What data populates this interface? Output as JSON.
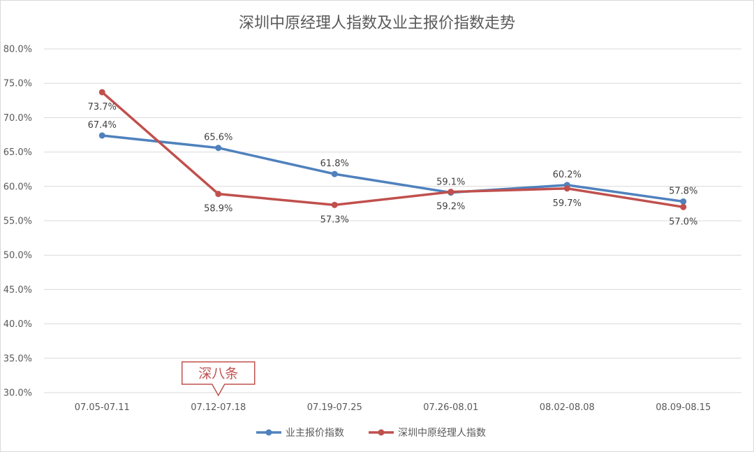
{
  "chart_data": {
    "type": "line",
    "title": "深圳中原经理人指数及业主报价指数走势",
    "categories": [
      "07.05-07.11",
      "07.12-07.18",
      "07.19-07.25",
      "07.26-08.01",
      "08.02-08.08",
      "08.09-08.15"
    ],
    "yticks": [
      "30.0%",
      "35.0%",
      "40.0%",
      "45.0%",
      "50.0%",
      "55.0%",
      "60.0%",
      "65.0%",
      "70.0%",
      "75.0%",
      "80.0%"
    ],
    "ylim": [
      30,
      80
    ],
    "grid": true,
    "legend_position": "bottom",
    "series": [
      {
        "name": "业主报价指数",
        "color": "#4f81bd",
        "values": [
          67.4,
          65.6,
          61.8,
          59.1,
          60.2,
          57.8
        ],
        "labels": [
          "67.4%",
          "65.6%",
          "61.8%",
          "59.1%",
          "60.2%",
          "57.8%"
        ],
        "label_position": "above"
      },
      {
        "name": "深圳中原经理人指数",
        "color": "#c0504d",
        "values": [
          73.7,
          58.9,
          57.3,
          59.2,
          59.7,
          57.0
        ],
        "labels": [
          "73.7%",
          "58.9%",
          "57.3%",
          "59.2%",
          "59.7%",
          "57.0%"
        ],
        "label_position": "below"
      }
    ],
    "annotation": {
      "text": "深八条",
      "category_index": 1,
      "color": "#c0504d"
    }
  }
}
